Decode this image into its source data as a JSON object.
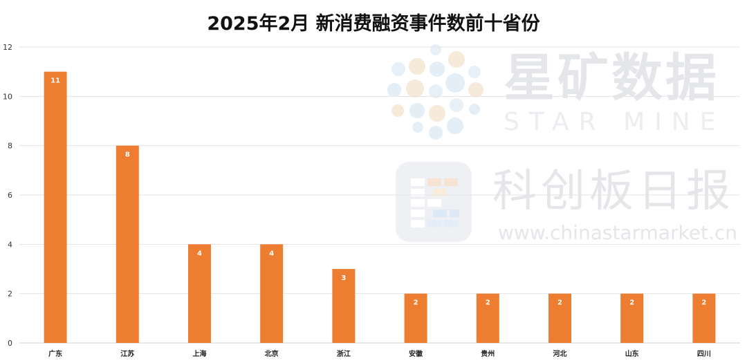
{
  "chart_data": {
    "type": "bar",
    "title": "2025年2月 新消费融资事件数前十省份",
    "categories": [
      "广东",
      "江苏",
      "上海",
      "北京",
      "浙江",
      "安徽",
      "贵州",
      "河北",
      "山东",
      "四川"
    ],
    "values": [
      11,
      8,
      4,
      4,
      3,
      2,
      2,
      2,
      2,
      2
    ],
    "ylim": [
      0,
      12
    ],
    "yticks": [
      0,
      2,
      4,
      6,
      8,
      10,
      12
    ],
    "xlabel": "",
    "ylabel": "",
    "grid": true,
    "data_labels": true,
    "bar_color": "#ed7d31"
  },
  "watermark": {
    "brand1_cn": "星矿数据",
    "brand1_en": "STAR MINE",
    "brand2_cn": "科创板日报",
    "brand2_url": "www.chinastarmarket.cn"
  }
}
